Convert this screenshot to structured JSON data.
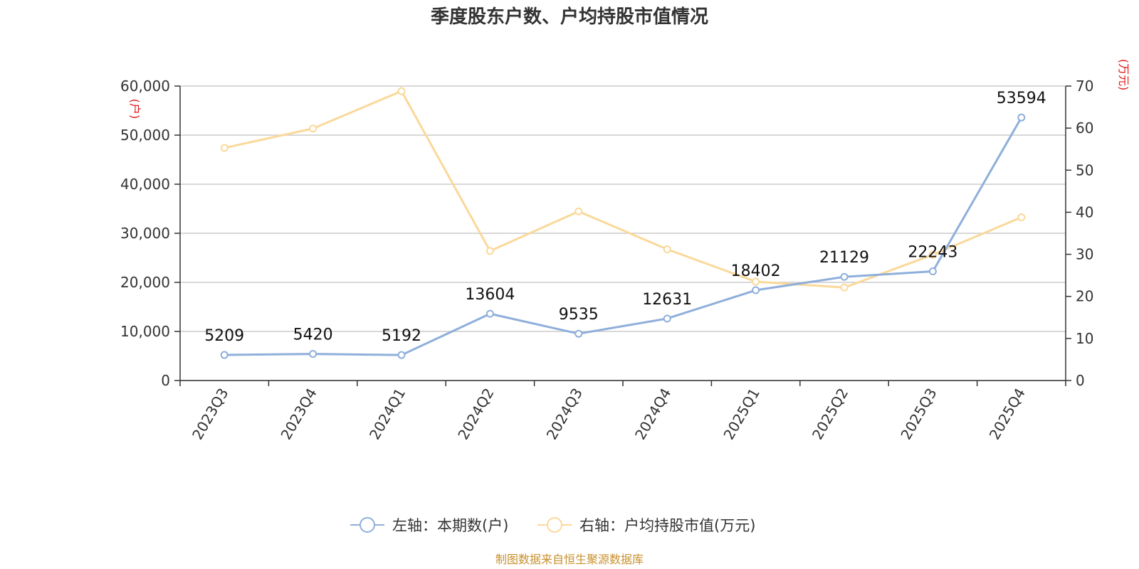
{
  "chart_data": {
    "type": "line",
    "title": "季度股东户数、户均持股市值情况",
    "categories": [
      "2023Q3",
      "2023Q4",
      "2024Q1",
      "2024Q2",
      "2024Q3",
      "2024Q4",
      "2025Q1",
      "2025Q2",
      "2025Q3",
      "2025Q4"
    ],
    "series": [
      {
        "name": "左轴：本期数(户)",
        "axis": "left",
        "color": "#8fafdb",
        "values": [
          5209,
          5420,
          5192,
          13604,
          9535,
          12631,
          18402,
          21129,
          22243,
          53594
        ],
        "labels": [
          "5209",
          "5420",
          "5192",
          "13604",
          "9535",
          "12631",
          "18402",
          "21129",
          "22243",
          "53594"
        ]
      },
      {
        "name": "右轴：户均持股市值(万元)",
        "axis": "right",
        "color": "#fad99a",
        "values": [
          55.3,
          59.9,
          68.8,
          30.8,
          40.2,
          31.2,
          23.5,
          22.1,
          29.9,
          38.8
        ]
      }
    ],
    "y_left": {
      "unit": "(户)",
      "ylim": [
        0,
        60000
      ],
      "ticks": [
        0,
        10000,
        20000,
        30000,
        40000,
        50000,
        60000
      ],
      "tick_labels": [
        "0",
        "10,000",
        "20,000",
        "30,000",
        "40,000",
        "50,000",
        "60,000"
      ]
    },
    "y_right": {
      "unit": "(万元)",
      "ylim": [
        0,
        70
      ],
      "ticks": [
        0,
        10,
        20,
        30,
        40,
        50,
        60,
        70
      ],
      "tick_labels": [
        "0",
        "10",
        "20",
        "30",
        "40",
        "50",
        "60",
        "70"
      ]
    },
    "grid": true,
    "legend": "bottom-center",
    "source": "制图数据来自恒生聚源数据库"
  }
}
